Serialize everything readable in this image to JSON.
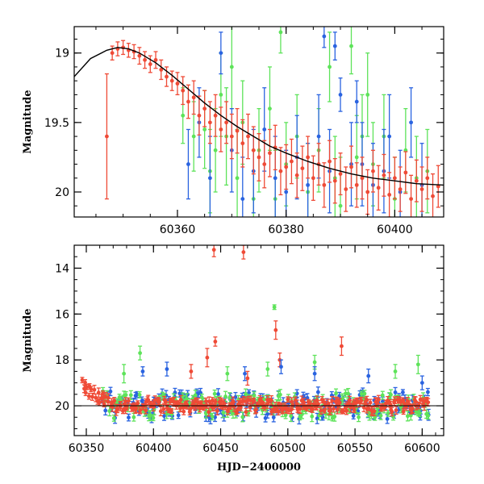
{
  "colors": {
    "red": "#ef4a36",
    "green": "#5ee35a",
    "blue": "#2a63e0",
    "model": "#000000"
  },
  "chart_data": [
    {
      "type": "scatter",
      "title": "",
      "xlabel": "",
      "ylabel": "Magnitude",
      "xlim": [
        60341,
        60409
      ],
      "ylim": [
        20.18,
        18.81
      ],
      "y_inverted": true,
      "x_ticks": [
        60360,
        60380,
        60400
      ],
      "y_ticks": [
        19,
        19.5,
        20
      ],
      "y_tick_labels": [
        "19",
        "19.5",
        "20"
      ],
      "model_curve": {
        "description_printed": false,
        "points": [
          [
            60341,
            19.17
          ],
          [
            60344,
            19.04
          ],
          [
            60347,
            18.98
          ],
          [
            60349,
            18.96
          ],
          [
            60351,
            18.97
          ],
          [
            60353,
            19.0
          ],
          [
            60356,
            19.07
          ],
          [
            60359,
            19.16
          ],
          [
            60362,
            19.26
          ],
          [
            60365,
            19.36
          ],
          [
            60368,
            19.45
          ],
          [
            60371,
            19.53
          ],
          [
            60374,
            19.6
          ],
          [
            60377,
            19.67
          ],
          [
            60380,
            19.72
          ],
          [
            60384,
            19.78
          ],
          [
            60388,
            19.83
          ],
          [
            60392,
            19.87
          ],
          [
            60396,
            19.9
          ],
          [
            60400,
            19.92
          ],
          [
            60404,
            19.94
          ],
          [
            60409,
            19.95
          ]
        ]
      },
      "series": [
        {
          "color": "red",
          "points": [
            [
              60347,
              19.6,
              0.45
            ],
            [
              60348,
              19.0,
              0.05
            ],
            [
              60349,
              18.97,
              0.05
            ],
            [
              60350,
              18.96,
              0.05
            ],
            [
              60351,
              18.98,
              0.05
            ],
            [
              60352,
              18.99,
              0.05
            ],
            [
              60353,
              19.02,
              0.06
            ],
            [
              60354,
              19.05,
              0.06
            ],
            [
              60355,
              19.08,
              0.06
            ],
            [
              60356,
              19.05,
              0.06
            ],
            [
              60357,
              19.12,
              0.07
            ],
            [
              60358,
              19.17,
              0.07
            ],
            [
              60359,
              19.2,
              0.07
            ],
            [
              60360,
              19.22,
              0.08
            ],
            [
              60361,
              19.27,
              0.1
            ],
            [
              60362,
              19.35,
              0.12
            ],
            [
              60363,
              19.32,
              0.12
            ],
            [
              60364,
              19.45,
              0.14
            ],
            [
              60365,
              19.4,
              0.13
            ],
            [
              60366,
              19.5,
              0.15
            ],
            [
              60367,
              19.45,
              0.15
            ],
            [
              60368,
              19.55,
              0.16
            ],
            [
              60369,
              19.5,
              0.15
            ],
            [
              60370,
              19.6,
              0.16
            ],
            [
              60371,
              19.56,
              0.16
            ],
            [
              60372,
              19.65,
              0.17
            ],
            [
              60373,
              19.6,
              0.16
            ],
            [
              60374,
              19.7,
              0.17
            ],
            [
              60375,
              19.75,
              0.17
            ],
            [
              60376,
              19.8,
              0.17
            ],
            [
              60377,
              19.72,
              0.17
            ],
            [
              60378,
              19.68,
              0.16
            ],
            [
              60379,
              19.85,
              0.17
            ],
            [
              60380,
              19.82,
              0.16
            ],
            [
              60381,
              19.78,
              0.16
            ],
            [
              60382,
              19.88,
              0.16
            ],
            [
              60383,
              19.83,
              0.16
            ],
            [
              60384,
              19.75,
              0.15
            ],
            [
              60385,
              19.9,
              0.16
            ],
            [
              60386,
              19.8,
              0.15
            ],
            [
              60387,
              19.95,
              0.16
            ],
            [
              60388,
              19.78,
              0.15
            ],
            [
              60389,
              19.92,
              0.16
            ],
            [
              60390,
              19.87,
              0.15
            ],
            [
              60391,
              19.98,
              0.16
            ],
            [
              60392,
              19.82,
              0.15
            ],
            [
              60393,
              19.95,
              0.16
            ],
            [
              60394,
              19.9,
              0.15
            ],
            [
              60395,
              20.0,
              0.16
            ],
            [
              60396,
              19.85,
              0.15
            ],
            [
              60397,
              19.97,
              0.16
            ],
            [
              60398,
              19.88,
              0.15
            ],
            [
              60399,
              20.02,
              0.16
            ],
            [
              60400,
              19.9,
              0.15
            ],
            [
              60401,
              19.98,
              0.16
            ],
            [
              60402,
              19.86,
              0.15
            ],
            [
              60403,
              20.05,
              0.17
            ],
            [
              60404,
              19.92,
              0.15
            ],
            [
              60405,
              19.98,
              0.16
            ],
            [
              60406,
              19.9,
              0.15
            ],
            [
              60407,
              20.03,
              0.16
            ],
            [
              60408,
              19.96,
              0.15
            ]
          ]
        },
        {
          "color": "green",
          "points": [
            [
              60361,
              19.45,
              0.2
            ],
            [
              60363,
              19.6,
              0.25
            ],
            [
              60365,
              19.55,
              0.28
            ],
            [
              60366,
              19.85,
              0.3
            ],
            [
              60367,
              19.7,
              0.3
            ],
            [
              60368,
              19.3,
              0.3
            ],
            [
              60369,
              19.6,
              0.35
            ],
            [
              60370,
              19.1,
              0.3
            ],
            [
              60371,
              19.9,
              0.35
            ],
            [
              60372,
              19.5,
              0.3
            ],
            [
              60374,
              20.05,
              0.35
            ],
            [
              60375,
              19.7,
              0.3
            ],
            [
              60377,
              19.4,
              0.3
            ],
            [
              60378,
              20.05,
              0.35
            ],
            [
              60379,
              18.85,
              0.15
            ],
            [
              60380,
              19.8,
              0.3
            ],
            [
              60382,
              19.6,
              0.3
            ],
            [
              60384,
              20.0,
              0.35
            ],
            [
              60386,
              19.7,
              0.3
            ],
            [
              60388,
              19.1,
              0.25
            ],
            [
              60389,
              19.9,
              0.3
            ],
            [
              60390,
              20.1,
              0.35
            ],
            [
              60392,
              18.95,
              0.2
            ],
            [
              60393,
              19.75,
              0.3
            ],
            [
              60394,
              19.6,
              0.3
            ],
            [
              60395,
              19.3,
              0.3
            ],
            [
              60396,
              19.8,
              0.3
            ],
            [
              60398,
              19.6,
              0.3
            ],
            [
              60400,
              20.05,
              0.3
            ],
            [
              60402,
              19.7,
              0.3
            ],
            [
              60404,
              19.9,
              0.3
            ],
            [
              60406,
              19.85,
              0.3
            ]
          ]
        },
        {
          "color": "blue",
          "points": [
            [
              60362,
              19.8,
              0.25
            ],
            [
              60364,
              19.5,
              0.25
            ],
            [
              60366,
              19.9,
              0.3
            ],
            [
              60368,
              19.0,
              0.15
            ],
            [
              60370,
              19.7,
              0.3
            ],
            [
              60372,
              20.05,
              0.3
            ],
            [
              60374,
              19.85,
              0.3
            ],
            [
              60376,
              19.55,
              0.3
            ],
            [
              60378,
              19.9,
              0.3
            ],
            [
              60380,
              20.0,
              0.3
            ],
            [
              60382,
              19.75,
              0.3
            ],
            [
              60384,
              19.95,
              0.3
            ],
            [
              60386,
              19.6,
              0.3
            ],
            [
              60387,
              18.88,
              0.08
            ],
            [
              60388,
              19.85,
              0.3
            ],
            [
              60389,
              18.95,
              0.1
            ],
            [
              60390,
              19.3,
              0.12
            ],
            [
              60392,
              19.8,
              0.3
            ],
            [
              60393,
              19.35,
              0.15
            ],
            [
              60394,
              19.8,
              0.3
            ],
            [
              60396,
              19.95,
              0.3
            ],
            [
              60398,
              19.85,
              0.3
            ],
            [
              60399,
              19.6,
              0.3
            ],
            [
              60401,
              20.0,
              0.3
            ],
            [
              60403,
              19.5,
              0.25
            ],
            [
              60405,
              19.95,
              0.3
            ]
          ]
        }
      ]
    },
    {
      "type": "scatter",
      "title": "",
      "xlabel": "HJD−2400000",
      "ylabel": "Magnitude",
      "xlim": [
        60341,
        60616
      ],
      "ylim": [
        21.3,
        13.0
      ],
      "y_inverted": true,
      "x_ticks": [
        60350,
        60400,
        60450,
        60500,
        60550,
        60600
      ],
      "y_ticks": [
        14,
        16,
        18,
        20
      ],
      "y_tick_labels": [
        "14",
        "16",
        "18",
        "20"
      ],
      "reference_line": {
        "y": 20.0
      },
      "outliers": [
        {
          "color": "red",
          "points": [
            [
              60445,
              13.2,
              0.3
            ],
            [
              60467,
              13.3,
              0.3
            ],
            [
              60440,
              17.9,
              0.4
            ],
            [
              60446,
              17.2,
              0.2
            ],
            [
              60491,
              16.7,
              0.4
            ],
            [
              60494,
              18.0,
              0.3
            ],
            [
              60540,
              17.4,
              0.4
            ],
            [
              60470,
              18.8,
              0.3
            ],
            [
              60428,
              18.5,
              0.3
            ]
          ]
        },
        {
          "color": "green",
          "points": [
            [
              60378,
              18.6,
              0.4
            ],
            [
              60390,
              17.7,
              0.3
            ],
            [
              60490,
              15.7,
              0.1
            ],
            [
              60520,
              18.1,
              0.3
            ],
            [
              60580,
              18.5,
              0.3
            ],
            [
              60597,
              18.2,
              0.4
            ],
            [
              60455,
              18.6,
              0.3
            ],
            [
              60485,
              18.4,
              0.3
            ]
          ]
        },
        {
          "color": "blue",
          "points": [
            [
              60392,
              18.5,
              0.2
            ],
            [
              60410,
              18.4,
              0.3
            ],
            [
              60468,
              18.6,
              0.3
            ],
            [
              60495,
              18.3,
              0.3
            ],
            [
              60520,
              18.6,
              0.3
            ],
            [
              60560,
              18.7,
              0.3
            ],
            [
              60600,
              19.0,
              0.3
            ]
          ]
        }
      ]
    }
  ]
}
